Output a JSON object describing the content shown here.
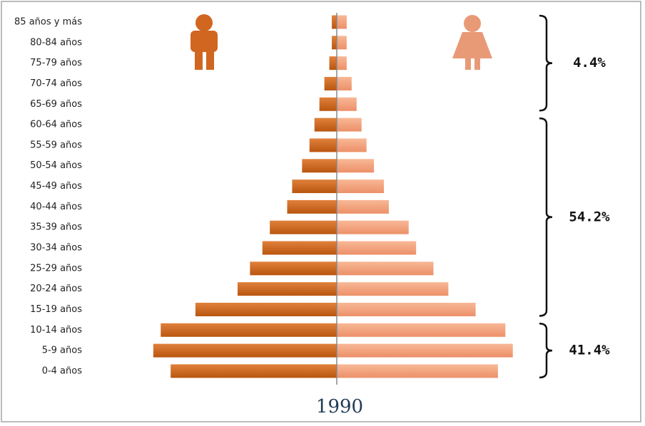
{
  "chart_data": {
    "type": "pyramid",
    "title": "1990",
    "categories": [
      "85 años y más",
      "80-84 años",
      "75-79 años",
      "70-74 años",
      "65-69 años",
      "60-64 años",
      "55-59 años",
      "50-54 años",
      "45-49 años",
      "40-44 años",
      "35-39 años",
      "30-34 años",
      "25-29 años",
      "20-24 años",
      "15-19 años",
      "10-14 años",
      "5-9 años",
      "0-4 años"
    ],
    "series": [
      {
        "color": "#d0661f",
        "values": [
          0.2,
          0.2,
          0.3,
          0.5,
          0.7,
          0.9,
          1.1,
          1.4,
          1.8,
          2.0,
          2.7,
          3.0,
          3.5,
          4.0,
          5.7,
          7.1,
          7.4,
          6.7
        ]
      },
      {
        "color": "#f2a27c",
        "values": [
          0.4,
          0.4,
          0.4,
          0.6,
          0.8,
          1.0,
          1.2,
          1.5,
          1.9,
          2.1,
          2.9,
          3.2,
          3.9,
          4.5,
          5.6,
          6.8,
          7.1,
          6.5
        ]
      }
    ],
    "xlim": [
      0,
      8
    ],
    "annotations": [
      "4.4%",
      "54.2%",
      "41.4%"
    ]
  }
}
